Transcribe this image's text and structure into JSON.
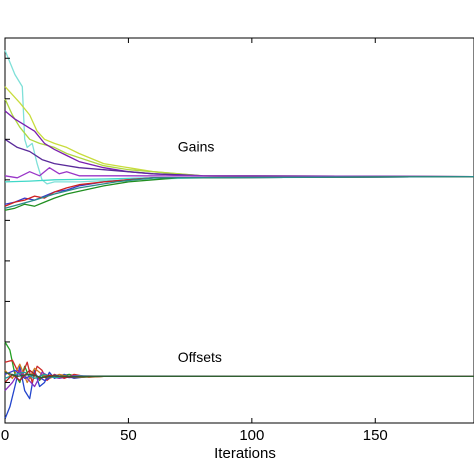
{
  "chart_data": {
    "type": "line",
    "title": "",
    "xlabel": "Iterations",
    "ylabel": "",
    "xlim": [
      0,
      190
    ],
    "ylim": [
      0,
      9.5
    ],
    "x_ticks": [
      0,
      50,
      100,
      150
    ],
    "x_tick_labels": [
      "0",
      "50",
      "100",
      "150"
    ],
    "y_ticks": [
      0,
      1,
      2,
      3,
      4,
      5,
      6,
      7,
      8,
      9
    ],
    "grid": false,
    "annotations": [
      {
        "text": "Gains",
        "x": 70,
        "y": 6.7
      },
      {
        "text": "Offsets",
        "x": 70,
        "y": 1.5
      }
    ],
    "series": [
      {
        "color": "#7fe0d8",
        "points": [
          [
            0,
            9.2
          ],
          [
            4,
            8.6
          ],
          [
            7,
            8.3
          ],
          [
            8,
            7.0
          ],
          [
            9,
            6.8
          ],
          [
            11,
            6.9
          ],
          [
            13,
            6.4
          ],
          [
            15,
            6.0
          ],
          [
            17,
            5.9
          ],
          [
            20,
            5.95
          ],
          [
            25,
            5.95
          ],
          [
            30,
            5.95
          ],
          [
            40,
            5.98
          ],
          [
            60,
            6.02
          ],
          [
            80,
            6.05
          ],
          [
            190,
            6.08
          ]
        ]
      },
      {
        "color": "#c8dc3c",
        "points": [
          [
            0,
            8.3
          ],
          [
            3,
            8.1
          ],
          [
            6,
            7.9
          ],
          [
            10,
            7.6
          ],
          [
            13,
            7.2
          ],
          [
            16,
            7.0
          ],
          [
            20,
            6.9
          ],
          [
            25,
            6.8
          ],
          [
            30,
            6.65
          ],
          [
            40,
            6.4
          ],
          [
            50,
            6.3
          ],
          [
            60,
            6.2
          ],
          [
            70,
            6.15
          ],
          [
            80,
            6.1
          ],
          [
            90,
            6.08
          ],
          [
            190,
            6.08
          ]
        ]
      },
      {
        "color": "#b0d840",
        "points": [
          [
            0,
            8.0
          ],
          [
            3,
            7.6
          ],
          [
            6,
            7.3
          ],
          [
            10,
            7.0
          ],
          [
            14,
            6.9
          ],
          [
            20,
            6.8
          ],
          [
            25,
            6.65
          ],
          [
            30,
            6.55
          ],
          [
            40,
            6.35
          ],
          [
            50,
            6.25
          ],
          [
            60,
            6.2
          ],
          [
            80,
            6.1
          ],
          [
            190,
            6.08
          ]
        ]
      },
      {
        "color": "#7a1fb0",
        "points": [
          [
            0,
            7.7
          ],
          [
            4,
            7.5
          ],
          [
            8,
            7.35
          ],
          [
            12,
            7.2
          ],
          [
            16,
            6.9
          ],
          [
            20,
            6.75
          ],
          [
            25,
            6.6
          ],
          [
            30,
            6.45
          ],
          [
            40,
            6.3
          ],
          [
            50,
            6.2
          ],
          [
            60,
            6.15
          ],
          [
            80,
            6.1
          ],
          [
            190,
            6.08
          ]
        ]
      },
      {
        "color": "#5a2a9a",
        "points": [
          [
            0,
            7.0
          ],
          [
            5,
            6.8
          ],
          [
            10,
            6.7
          ],
          [
            15,
            6.5
          ],
          [
            20,
            6.4
          ],
          [
            30,
            6.3
          ],
          [
            40,
            6.25
          ],
          [
            50,
            6.2
          ],
          [
            60,
            6.15
          ],
          [
            80,
            6.1
          ],
          [
            190,
            6.08
          ]
        ]
      },
      {
        "color": "#9a36c8",
        "points": [
          [
            0,
            6.1
          ],
          [
            5,
            6.05
          ],
          [
            10,
            6.2
          ],
          [
            14,
            6.1
          ],
          [
            18,
            6.3
          ],
          [
            22,
            6.15
          ],
          [
            25,
            6.2
          ],
          [
            30,
            6.1
          ],
          [
            40,
            6.1
          ],
          [
            50,
            6.1
          ],
          [
            190,
            6.08
          ]
        ]
      },
      {
        "color": "#40d8c8",
        "points": [
          [
            0,
            5.95
          ],
          [
            10,
            5.97
          ],
          [
            20,
            6.0
          ],
          [
            40,
            6.02
          ],
          [
            60,
            6.05
          ],
          [
            190,
            6.08
          ]
        ]
      },
      {
        "color": "#3a3ac8",
        "points": [
          [
            0,
            5.4
          ],
          [
            4,
            5.45
          ],
          [
            8,
            5.55
          ],
          [
            12,
            5.5
          ],
          [
            16,
            5.6
          ],
          [
            20,
            5.7
          ],
          [
            25,
            5.75
          ],
          [
            30,
            5.85
          ],
          [
            40,
            5.95
          ],
          [
            50,
            6.0
          ],
          [
            60,
            6.05
          ],
          [
            190,
            6.08
          ]
        ]
      },
      {
        "color": "#d02020",
        "points": [
          [
            0,
            5.35
          ],
          [
            4,
            5.45
          ],
          [
            8,
            5.5
          ],
          [
            12,
            5.6
          ],
          [
            16,
            5.55
          ],
          [
            20,
            5.7
          ],
          [
            25,
            5.8
          ],
          [
            30,
            5.88
          ],
          [
            40,
            5.95
          ],
          [
            50,
            6.0
          ],
          [
            60,
            6.05
          ],
          [
            190,
            6.08
          ]
        ]
      },
      {
        "color": "#208f20",
        "points": [
          [
            0,
            5.25
          ],
          [
            4,
            5.3
          ],
          [
            8,
            5.4
          ],
          [
            12,
            5.35
          ],
          [
            16,
            5.45
          ],
          [
            20,
            5.55
          ],
          [
            25,
            5.65
          ],
          [
            30,
            5.72
          ],
          [
            40,
            5.85
          ],
          [
            50,
            5.95
          ],
          [
            60,
            6.0
          ],
          [
            70,
            6.05
          ],
          [
            190,
            6.08
          ]
        ]
      },
      {
        "color": "#2a8a8a",
        "points": [
          [
            0,
            5.3
          ],
          [
            6,
            5.4
          ],
          [
            12,
            5.5
          ],
          [
            20,
            5.65
          ],
          [
            30,
            5.8
          ],
          [
            45,
            5.95
          ],
          [
            60,
            6.05
          ],
          [
            190,
            6.08
          ]
        ]
      },
      {
        "color": "#22a022",
        "points": [
          [
            0,
            2.0
          ],
          [
            2,
            1.8
          ],
          [
            4,
            1.2
          ],
          [
            6,
            1.0
          ],
          [
            8,
            1.4
          ],
          [
            10,
            1.1
          ],
          [
            12,
            1.25
          ],
          [
            14,
            1.05
          ],
          [
            16,
            1.2
          ],
          [
            18,
            1.15
          ],
          [
            22,
            1.15
          ],
          [
            26,
            1.2
          ],
          [
            30,
            1.13
          ],
          [
            40,
            1.15
          ],
          [
            60,
            1.15
          ],
          [
            190,
            1.15
          ]
        ]
      },
      {
        "color": "#2244cc",
        "points": [
          [
            0,
            0.1
          ],
          [
            2,
            0.4
          ],
          [
            4,
            0.9
          ],
          [
            6,
            1.4
          ],
          [
            8,
            0.8
          ],
          [
            10,
            0.6
          ],
          [
            12,
            1.3
          ],
          [
            14,
            0.9
          ],
          [
            16,
            1.0
          ],
          [
            18,
            1.25
          ],
          [
            20,
            1.1
          ],
          [
            24,
            1.2
          ],
          [
            28,
            1.1
          ],
          [
            34,
            1.15
          ],
          [
            50,
            1.15
          ],
          [
            190,
            1.15
          ]
        ]
      },
      {
        "color": "#cc2a2a",
        "points": [
          [
            0,
            1.5
          ],
          [
            3,
            1.55
          ],
          [
            5,
            1.3
          ],
          [
            7,
            1.2
          ],
          [
            9,
            1.5
          ],
          [
            11,
            1.0
          ],
          [
            13,
            1.4
          ],
          [
            15,
            1.3
          ],
          [
            17,
            1.05
          ],
          [
            20,
            1.2
          ],
          [
            24,
            1.1
          ],
          [
            28,
            1.2
          ],
          [
            34,
            1.13
          ],
          [
            40,
            1.15
          ],
          [
            190,
            1.15
          ]
        ]
      },
      {
        "color": "#d07a20",
        "points": [
          [
            0,
            1.3
          ],
          [
            3,
            1.1
          ],
          [
            6,
            1.45
          ],
          [
            9,
            1.0
          ],
          [
            12,
            1.35
          ],
          [
            15,
            1.2
          ],
          [
            18,
            1.1
          ],
          [
            22,
            1.2
          ],
          [
            28,
            1.12
          ],
          [
            40,
            1.15
          ],
          [
            190,
            1.15
          ]
        ]
      },
      {
        "color": "#8a30c0",
        "points": [
          [
            0,
            0.8
          ],
          [
            3,
            1.0
          ],
          [
            6,
            1.3
          ],
          [
            9,
            1.1
          ],
          [
            12,
            0.9
          ],
          [
            15,
            1.25
          ],
          [
            18,
            1.15
          ],
          [
            22,
            1.1
          ],
          [
            28,
            1.17
          ],
          [
            40,
            1.15
          ],
          [
            190,
            1.15
          ]
        ]
      },
      {
        "color": "#3a3ad0",
        "points": [
          [
            0,
            1.2
          ],
          [
            4,
            1.3
          ],
          [
            8,
            1.1
          ],
          [
            12,
            1.2
          ],
          [
            16,
            1.05
          ],
          [
            20,
            1.18
          ],
          [
            26,
            1.12
          ],
          [
            34,
            1.15
          ],
          [
            190,
            1.15
          ]
        ]
      },
      {
        "color": "#20a0a0",
        "points": [
          [
            0,
            1.1
          ],
          [
            4,
            1.2
          ],
          [
            8,
            1.25
          ],
          [
            12,
            1.1
          ],
          [
            16,
            1.2
          ],
          [
            20,
            1.12
          ],
          [
            30,
            1.16
          ],
          [
            190,
            1.15
          ]
        ]
      },
      {
        "color": "#b02020",
        "points": [
          [
            0,
            1.0
          ],
          [
            3,
            1.2
          ],
          [
            6,
            1.05
          ],
          [
            10,
            1.3
          ],
          [
            14,
            1.1
          ],
          [
            18,
            1.18
          ],
          [
            24,
            1.13
          ],
          [
            34,
            1.15
          ],
          [
            190,
            1.15
          ]
        ]
      },
      {
        "color": "#306030",
        "points": [
          [
            0,
            1.25
          ],
          [
            5,
            1.15
          ],
          [
            10,
            1.2
          ],
          [
            15,
            1.12
          ],
          [
            20,
            1.16
          ],
          [
            30,
            1.14
          ],
          [
            40,
            1.15
          ],
          [
            190,
            1.15
          ]
        ]
      }
    ]
  }
}
